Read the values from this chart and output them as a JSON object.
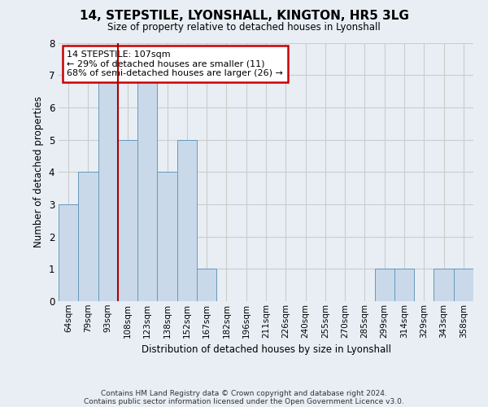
{
  "title": "14, STEPSTILE, LYONSHALL, KINGTON, HR5 3LG",
  "subtitle": "Size of property relative to detached houses in Lyonshall",
  "xlabel": "Distribution of detached houses by size in Lyonshall",
  "ylabel": "Number of detached properties",
  "categories": [
    "64sqm",
    "79sqm",
    "93sqm",
    "108sqm",
    "123sqm",
    "138sqm",
    "152sqm",
    "167sqm",
    "182sqm",
    "196sqm",
    "211sqm",
    "226sqm",
    "240sqm",
    "255sqm",
    "270sqm",
    "285sqm",
    "299sqm",
    "314sqm",
    "329sqm",
    "343sqm",
    "358sqm"
  ],
  "values": [
    3,
    4,
    7,
    5,
    7,
    4,
    5,
    1,
    0,
    0,
    0,
    0,
    0,
    0,
    0,
    0,
    1,
    1,
    0,
    1,
    1
  ],
  "bar_color": "#c9d9ea",
  "bar_edge_color": "#6699bb",
  "property_line_index": 3,
  "property_line_color": "#aa0000",
  "annotation_text": "14 STEPSTILE: 107sqm\n← 29% of detached houses are smaller (11)\n68% of semi-detached houses are larger (26) →",
  "annotation_box_color": "#ffffff",
  "annotation_box_edge_color": "#cc0000",
  "ylim": [
    0,
    8
  ],
  "yticks": [
    0,
    1,
    2,
    3,
    4,
    5,
    6,
    7,
    8
  ],
  "grid_color": "#cccccc",
  "background_color": "#e8eef4",
  "footer_line1": "Contains HM Land Registry data © Crown copyright and database right 2024.",
  "footer_line2": "Contains public sector information licensed under the Open Government Licence v3.0."
}
